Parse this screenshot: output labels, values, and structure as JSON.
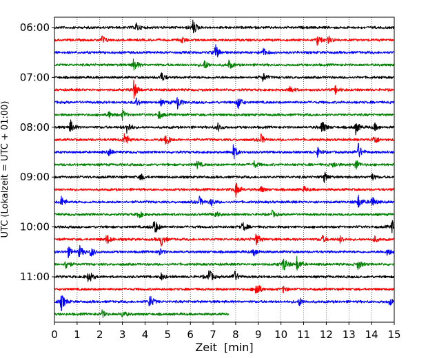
{
  "chart_data": {
    "type": "line",
    "subtype": "helicorder",
    "xlabel": "Zeit  [min]",
    "ylabel": "UTC (Lokalzeit = UTC + 01:00)",
    "xlim": [
      0,
      15
    ],
    "x_ticks": [
      0,
      1,
      2,
      3,
      4,
      5,
      6,
      7,
      8,
      9,
      10,
      11,
      12,
      13,
      14,
      15
    ],
    "y_tick_labels": [
      "06:00",
      "07:00",
      "08:00",
      "09:00",
      "10:00",
      "11:00"
    ],
    "y_tick_rows": [
      0,
      4,
      8,
      12,
      16,
      20
    ],
    "row_minutes": 15,
    "start_time": "06:00",
    "grid": "vertical dotted at each minute",
    "legend": "none",
    "colors": [
      "#000000",
      "#ff0000",
      "#0000ff",
      "#008000"
    ],
    "rows": [
      {
        "time": "06:00",
        "color": "#000000",
        "end_min": 15,
        "events": [
          {
            "min": 3.6,
            "amp": 0.5
          },
          {
            "min": 6.1,
            "amp": 0.9
          }
        ]
      },
      {
        "time": "06:15",
        "color": "#ff0000",
        "end_min": 15,
        "events": [
          {
            "min": 2.1,
            "amp": 0.5
          },
          {
            "min": 5.6,
            "amp": 0.4
          },
          {
            "min": 11.6,
            "amp": 0.6
          },
          {
            "min": 12.1,
            "amp": 0.4
          }
        ]
      },
      {
        "time": "06:30",
        "color": "#0000ff",
        "end_min": 15,
        "events": [
          {
            "min": 7.1,
            "amp": 0.9
          },
          {
            "min": 9.2,
            "amp": 0.5
          }
        ]
      },
      {
        "time": "06:45",
        "color": "#008000",
        "end_min": 15,
        "events": [
          {
            "min": 3.5,
            "amp": 0.8
          },
          {
            "min": 6.6,
            "amp": 0.6
          },
          {
            "min": 7.7,
            "amp": 0.5
          }
        ]
      },
      {
        "time": "07:00",
        "color": "#000000",
        "end_min": 15,
        "events": [
          {
            "min": 4.7,
            "amp": 0.6
          },
          {
            "min": 9.2,
            "amp": 0.5
          }
        ]
      },
      {
        "time": "07:15",
        "color": "#ff0000",
        "end_min": 15,
        "events": [
          {
            "min": 3.5,
            "amp": 1.0
          },
          {
            "min": 10.4,
            "amp": 0.5
          },
          {
            "min": 12.4,
            "amp": 0.4
          }
        ]
      },
      {
        "time": "07:30",
        "color": "#0000ff",
        "end_min": 15,
        "events": [
          {
            "min": 3.6,
            "amp": 0.5
          },
          {
            "min": 5.4,
            "amp": 0.9
          },
          {
            "min": 8.1,
            "amp": 0.8
          },
          {
            "min": 4.7,
            "amp": 0.3
          }
        ]
      },
      {
        "time": "07:45",
        "color": "#008000",
        "end_min": 15,
        "events": [
          {
            "min": 2.4,
            "amp": 0.4
          },
          {
            "min": 3.0,
            "amp": 0.5
          },
          {
            "min": 4.6,
            "amp": 0.5
          }
        ]
      },
      {
        "time": "08:00",
        "color": "#000000",
        "end_min": 15,
        "events": [
          {
            "min": 0.7,
            "amp": 0.8
          },
          {
            "min": 3.2,
            "amp": 0.8
          },
          {
            "min": 7.2,
            "amp": 0.5
          },
          {
            "min": 11.8,
            "amp": 0.9
          },
          {
            "min": 13.3,
            "amp": 0.7
          },
          {
            "min": 14.1,
            "amp": 0.5
          }
        ]
      },
      {
        "time": "08:15",
        "color": "#ff0000",
        "end_min": 15,
        "events": [
          {
            "min": 3.1,
            "amp": 0.9
          },
          {
            "min": 4.9,
            "amp": 1.0
          },
          {
            "min": 9.1,
            "amp": 0.6
          },
          {
            "min": 14.1,
            "amp": 0.6
          }
        ]
      },
      {
        "time": "08:30",
        "color": "#0000ff",
        "end_min": 15,
        "events": [
          {
            "min": 2.4,
            "amp": 0.4
          },
          {
            "min": 7.9,
            "amp": 0.8
          },
          {
            "min": 11.6,
            "amp": 0.5
          },
          {
            "min": 13.4,
            "amp": 1.0
          }
        ]
      },
      {
        "time": "08:45",
        "color": "#008000",
        "end_min": 15,
        "events": [
          {
            "min": 6.3,
            "amp": 0.4
          },
          {
            "min": 8.8,
            "amp": 0.4
          },
          {
            "min": 12.3,
            "amp": 0.4
          },
          {
            "min": 13.3,
            "amp": 0.6
          }
        ]
      },
      {
        "time": "09:00",
        "color": "#000000",
        "end_min": 15,
        "events": [
          {
            "min": 3.8,
            "amp": 0.4
          },
          {
            "min": 11.9,
            "amp": 0.6
          },
          {
            "min": 14.0,
            "amp": 0.4
          }
        ]
      },
      {
        "time": "09:15",
        "color": "#ff0000",
        "end_min": 15,
        "events": [
          {
            "min": 8.0,
            "amp": 0.9
          },
          {
            "min": 9.1,
            "amp": 0.4
          },
          {
            "min": 11.0,
            "amp": 0.3
          }
        ]
      },
      {
        "time": "09:30",
        "color": "#0000ff",
        "end_min": 15,
        "events": [
          {
            "min": 0.3,
            "amp": 0.6
          },
          {
            "min": 6.4,
            "amp": 0.5
          },
          {
            "min": 6.9,
            "amp": 0.4
          },
          {
            "min": 13.4,
            "amp": 0.8
          },
          {
            "min": 14.0,
            "amp": 0.7
          }
        ]
      },
      {
        "time": "09:45",
        "color": "#008000",
        "end_min": 15,
        "events": [
          {
            "min": 3.7,
            "amp": 0.5
          },
          {
            "min": 7.1,
            "amp": 0.4
          },
          {
            "min": 9.6,
            "amp": 0.4
          }
        ]
      },
      {
        "time": "10:00",
        "color": "#000000",
        "end_min": 15,
        "events": [
          {
            "min": 4.4,
            "amp": 1.0
          },
          {
            "min": 8.3,
            "amp": 0.6
          },
          {
            "min": 14.9,
            "amp": 0.7
          }
        ]
      },
      {
        "time": "10:15",
        "color": "#ff0000",
        "end_min": 15,
        "events": [
          {
            "min": 2.3,
            "amp": 0.6
          },
          {
            "min": 4.7,
            "amp": 0.8
          },
          {
            "min": 8.9,
            "amp": 0.7
          },
          {
            "min": 11.8,
            "amp": 0.5
          },
          {
            "min": 12.6,
            "amp": 0.4
          },
          {
            "min": 14.1,
            "amp": 0.4
          }
        ]
      },
      {
        "time": "10:30",
        "color": "#0000ff",
        "end_min": 15,
        "events": [
          {
            "min": 0.6,
            "amp": 0.6
          },
          {
            "min": 1.1,
            "amp": 0.7
          },
          {
            "min": 1.6,
            "amp": 0.6
          },
          {
            "min": 4.6,
            "amp": 0.5
          },
          {
            "min": 8.8,
            "amp": 0.5
          },
          {
            "min": 14.7,
            "amp": 0.5
          }
        ]
      },
      {
        "time": "10:45",
        "color": "#008000",
        "end_min": 15,
        "events": [
          {
            "min": 0.5,
            "amp": 0.6
          },
          {
            "min": 10.1,
            "amp": 0.9
          },
          {
            "min": 10.7,
            "amp": 0.8
          },
          {
            "min": 13.4,
            "amp": 0.6
          }
        ]
      },
      {
        "time": "11:00",
        "color": "#000000",
        "end_min": 15,
        "events": [
          {
            "min": 1.5,
            "amp": 0.8
          },
          {
            "min": 6.8,
            "amp": 1.0
          },
          {
            "min": 7.9,
            "amp": 0.9
          },
          {
            "min": 4.7,
            "amp": 0.4
          }
        ]
      },
      {
        "time": "11:15",
        "color": "#ff0000",
        "end_min": 15,
        "events": [
          {
            "min": 8.9,
            "amp": 1.0
          },
          {
            "min": 10.1,
            "amp": 0.4
          }
        ]
      },
      {
        "time": "11:30",
        "color": "#0000ff",
        "end_min": 15,
        "events": [
          {
            "min": 0.3,
            "amp": 1.0
          },
          {
            "min": 4.2,
            "amp": 0.8
          },
          {
            "min": 10.8,
            "amp": 0.5
          },
          {
            "min": 14.8,
            "amp": 0.4
          }
        ]
      },
      {
        "time": "11:45",
        "color": "#008000",
        "end_min": 7.7,
        "events": [
          {
            "min": 2.1,
            "amp": 0.4
          },
          {
            "min": 3.0,
            "amp": 0.4
          }
        ]
      }
    ]
  }
}
